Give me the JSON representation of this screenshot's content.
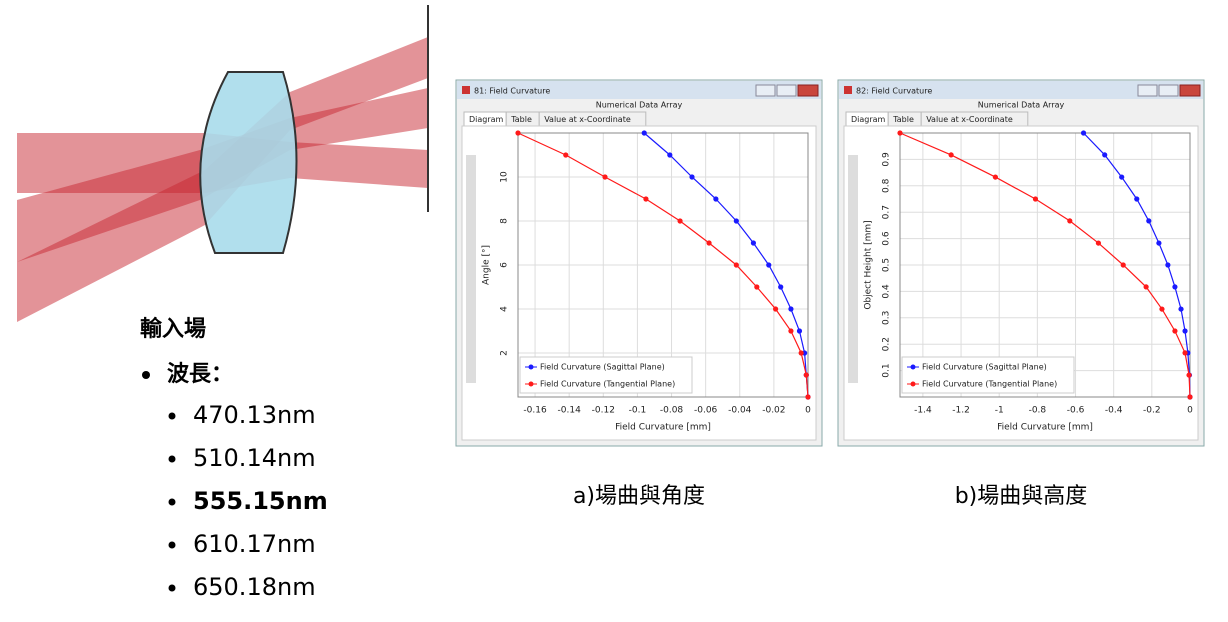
{
  "bullets": {
    "heading": "輸入場",
    "item": "波長：",
    "wavelengths": [
      "470.13nm",
      "510.14nm",
      "555.15nm",
      "610.17nm",
      "650.18nm"
    ],
    "bold_index": 2
  },
  "chart_data": [
    {
      "type": "line",
      "window_title": "81: Field Curvature",
      "panel_title": "Numerical Data Array",
      "tabs": [
        "Diagram",
        "Table",
        "Value at x-Coordinate"
      ],
      "xlabel": "Field Curvature [mm]",
      "ylabel": "Angle [°]",
      "caption": "a)場曲與角度",
      "xlim": [
        -0.17,
        0
      ],
      "ylim": [
        0,
        12
      ],
      "xticks": [
        -0.16,
        -0.14,
        -0.12,
        -0.1,
        -0.08,
        -0.06,
        -0.04,
        -0.02,
        0
      ],
      "yticks": [
        2,
        4,
        6,
        8,
        10
      ],
      "grid": true,
      "legend": "lower left",
      "series": [
        {
          "name": "Field Curvature (Sagittal Plane)",
          "color": "#1a1aff",
          "x": [
            0,
            -0.001,
            -0.002,
            -0.005,
            -0.01,
            -0.016,
            -0.023,
            -0.032,
            -0.042,
            -0.054,
            -0.068,
            -0.081,
            -0.096
          ],
          "y": [
            0,
            1,
            2,
            3,
            4,
            5,
            6,
            7,
            8,
            9,
            10,
            11,
            12
          ]
        },
        {
          "name": "Field Curvature (Tangential Plane)",
          "color": "#ff1a1a",
          "x": [
            0,
            -0.001,
            -0.004,
            -0.01,
            -0.019,
            -0.03,
            -0.042,
            -0.058,
            -0.075,
            -0.095,
            -0.119,
            -0.142,
            -0.17
          ],
          "y": [
            0,
            1,
            2,
            3,
            4,
            5,
            6,
            7,
            8,
            9,
            10,
            11,
            12
          ]
        }
      ]
    },
    {
      "type": "line",
      "window_title": "82: Field Curvature",
      "panel_title": "Numerical Data Array",
      "tabs": [
        "Diagram",
        "Table",
        "Value at x-Coordinate"
      ],
      "xlabel": "Field Curvature [mm]",
      "ylabel": "Object Height [mm]",
      "caption": "b)場曲與高度",
      "xlim": [
        -1.52,
        0
      ],
      "ylim": [
        0,
        1
      ],
      "xticks": [
        -1.4,
        -1.2,
        -1,
        -0.8,
        -0.6,
        -0.4,
        -0.2,
        0
      ],
      "yticks": [
        0.1,
        0.2,
        0.3,
        0.4,
        0.5,
        0.6,
        0.7,
        0.8,
        0.9
      ],
      "grid": true,
      "legend": "lower left",
      "series": [
        {
          "name": "Field Curvature (Sagittal Plane)",
          "color": "#1a1aff",
          "x": [
            0,
            -0.003,
            -0.011,
            -0.026,
            -0.047,
            -0.079,
            -0.116,
            -0.163,
            -0.216,
            -0.279,
            -0.358,
            -0.447,
            -0.558
          ],
          "y": [
            0,
            0.083,
            0.167,
            0.25,
            0.333,
            0.417,
            0.5,
            0.583,
            0.667,
            0.75,
            0.833,
            0.917,
            1
          ]
        },
        {
          "name": "Field Curvature (Tangential Plane)",
          "color": "#ff1a1a",
          "x": [
            0,
            -0.005,
            -0.026,
            -0.079,
            -0.147,
            -0.23,
            -0.35,
            -0.48,
            -0.63,
            -0.81,
            -1.02,
            -1.252,
            -1.52
          ],
          "y": [
            0,
            0.083,
            0.167,
            0.25,
            0.333,
            0.417,
            0.5,
            0.583,
            0.667,
            0.75,
            0.833,
            0.917,
            1
          ]
        }
      ]
    }
  ]
}
